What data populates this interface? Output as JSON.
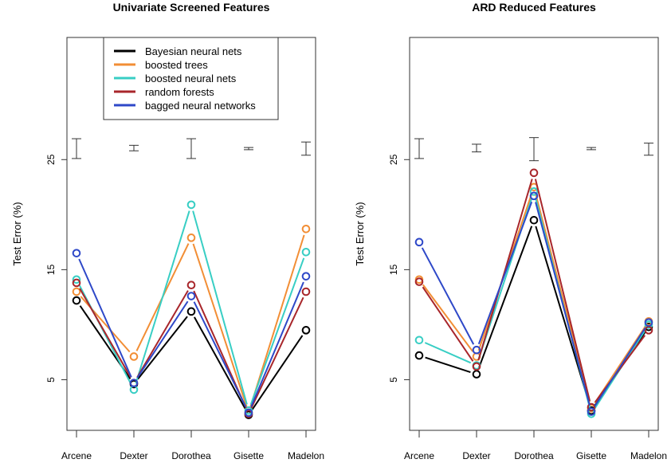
{
  "colors": {
    "Bayesian neural nets": "#000000",
    "boosted trees": "#F28E35",
    "boosted neural nets": "#38CEC4",
    "random forests": "#A8262B",
    "bagged neural networks": "#2E48C8"
  },
  "legend": {
    "placement": "top-left of first panel",
    "entries": [
      "Bayesian neural nets",
      "boosted trees",
      "boosted neural nets",
      "random forests",
      "bagged neural networks"
    ]
  },
  "chart_data": [
    {
      "type": "line",
      "title": "Univariate Screened Features",
      "ylabel": "Test Error (%)",
      "xlabel": "",
      "categories": [
        "Arcene",
        "Dexter",
        "Dorothea",
        "Gisette",
        "Madelon"
      ],
      "yticks": [
        5,
        15,
        25
      ],
      "ylim": [
        0.4,
        36.1
      ],
      "grid": false,
      "series": [
        {
          "name": "Bayesian neural nets",
          "values": [
            12.2,
            4.6,
            11.2,
            1.8,
            9.5
          ]
        },
        {
          "name": "boosted trees",
          "values": [
            13.0,
            7.1,
            17.9,
            2.0,
            18.7
          ]
        },
        {
          "name": "boosted neural nets",
          "values": [
            14.1,
            4.1,
            20.9,
            2.2,
            16.6
          ]
        },
        {
          "name": "random forests",
          "values": [
            13.8,
            4.7,
            13.6,
            1.9,
            13.0
          ]
        },
        {
          "name": "bagged neural networks",
          "values": [
            16.5,
            4.7,
            12.6,
            2.0,
            14.4
          ]
        }
      ],
      "error_bars": [
        [
          25.1,
          26.9
        ],
        [
          25.8,
          26.3
        ],
        [
          25.1,
          26.9
        ],
        [
          25.9,
          26.1
        ],
        [
          25.4,
          26.6
        ]
      ]
    },
    {
      "type": "line",
      "title": "ARD Reduced Features",
      "ylabel": "Test Error (%)",
      "xlabel": "",
      "categories": [
        "Arcene",
        "Dexter",
        "Dorothea",
        "Gisette",
        "Madelon"
      ],
      "yticks": [
        5,
        15,
        25
      ],
      "ylim": [
        0.4,
        36.1
      ],
      "grid": false,
      "series": [
        {
          "name": "Bayesian neural nets",
          "values": [
            7.2,
            5.5,
            19.5,
            2.2,
            9.8
          ]
        },
        {
          "name": "boosted trees",
          "values": [
            14.1,
            7.1,
            22.5,
            2.4,
            10.3
          ]
        },
        {
          "name": "boosted neural nets",
          "values": [
            8.6,
            6.3,
            22.1,
            1.9,
            10.0
          ]
        },
        {
          "name": "random forests",
          "values": [
            13.9,
            6.2,
            23.8,
            2.5,
            9.5
          ]
        },
        {
          "name": "bagged neural networks",
          "values": [
            17.5,
            7.7,
            21.7,
            2.1,
            10.2
          ]
        }
      ],
      "error_bars": [
        [
          25.1,
          26.9
        ],
        [
          25.7,
          26.4
        ],
        [
          24.9,
          27.0
        ],
        [
          25.9,
          26.1
        ],
        [
          25.4,
          26.5
        ]
      ]
    }
  ]
}
